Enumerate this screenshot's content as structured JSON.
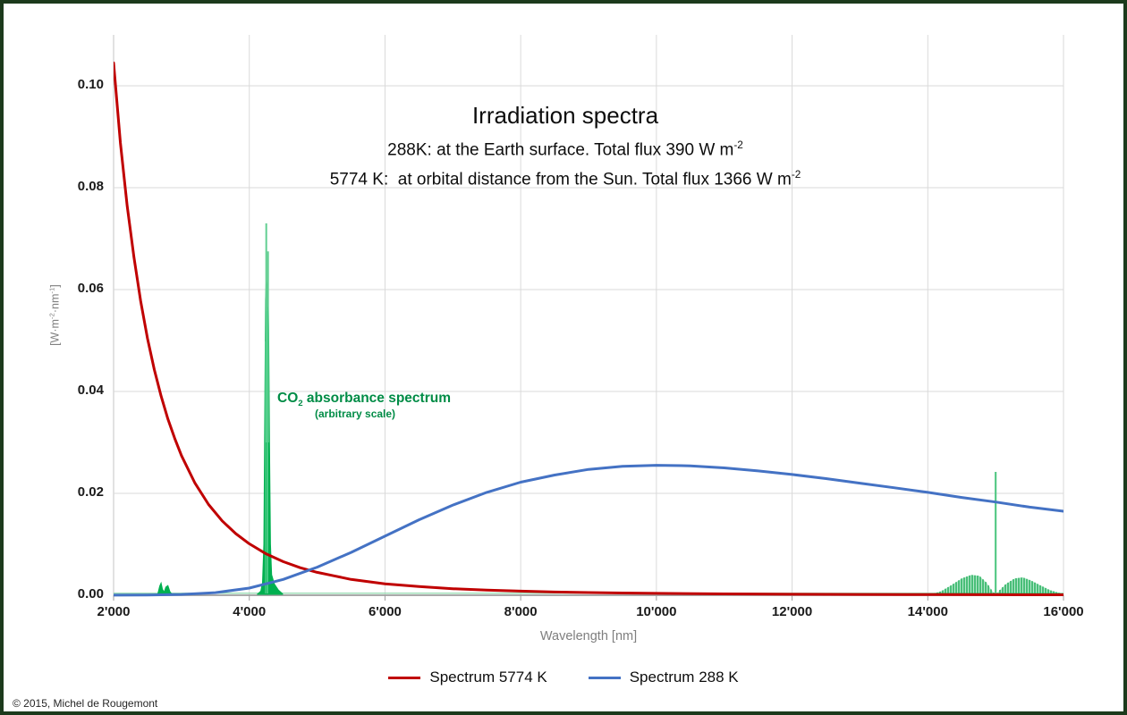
{
  "header": {
    "title": "Irradiation spectra",
    "subtitle1_text": "288K: at the Earth surface. Total flux 390 W m",
    "subtitle1_sup": "-2",
    "subtitle2_text": "5774 K:  at orbital distance from the Sun. Total flux 1366 W m",
    "subtitle2_sup": "-2"
  },
  "axes": {
    "x_label": "Wavelength [nm]",
    "y_label_p1": "[W·m",
    "y_label_s1": "-2",
    "y_label_p2": "·nm",
    "y_label_s2": "-1",
    "y_label_p3": "]"
  },
  "annotation": {
    "co2_pre": "CO",
    "co2_sub": "2",
    "co2_post": " absorbance spectrum",
    "co2_note": "(arbitrary scale)"
  },
  "legend": {
    "items": [
      {
        "label": "Spectrum 5774 K",
        "color": "#C00000"
      },
      {
        "label": "Spectrum 288 K",
        "color": "#4472C4"
      }
    ]
  },
  "footer": {
    "copyright": "© 2015, Michel de Rougemont"
  },
  "colors": {
    "red_curve": "#C00000",
    "blue_curve": "#4472C4",
    "green_solid": "#00B050",
    "green_comb": "#2fb563",
    "green_light": "#62cf92",
    "green_baseline": "#8fd8ab",
    "gridline": "#dadada",
    "axis": "#9e9e9e",
    "frame_border": "#1c3a1c",
    "annotation_green": "#008c46"
  },
  "chart_data": {
    "type": "line",
    "title": "Irradiation spectra",
    "subtitle1": "288K: at the Earth surface. Total flux 390 W m-2",
    "subtitle2": "5774 K: at orbital distance from the Sun. Total flux 1366 W m-2",
    "xlabel": "Wavelength [nm]",
    "ylabel": "[W·m-2·nm-1]",
    "xlim": [
      2000,
      16000
    ],
    "ylim": [
      0,
      0.11
    ],
    "grid": true,
    "legend_position": "bottom",
    "x_ticks": {
      "values": [
        2000,
        4000,
        6000,
        8000,
        10000,
        12000,
        14000,
        16000
      ],
      "labels": [
        "2'000",
        "4'000",
        "6'000",
        "8'000",
        "10'000",
        "12'000",
        "14'000",
        "16'000"
      ]
    },
    "y_ticks": {
      "values": [
        0,
        0.02,
        0.04,
        0.06,
        0.08,
        0.1
      ],
      "labels": [
        "0.00",
        "0.02",
        "0.04",
        "0.06",
        "0.08",
        "0.10"
      ]
    },
    "series": [
      {
        "name": "Spectrum 5774 K",
        "color": "#C00000",
        "points": [
          [
            2000,
            0.1045
          ],
          [
            2100,
            0.0888
          ],
          [
            2200,
            0.0764
          ],
          [
            2300,
            0.0663
          ],
          [
            2400,
            0.0577
          ],
          [
            2500,
            0.0504
          ],
          [
            2600,
            0.0443
          ],
          [
            2700,
            0.0391
          ],
          [
            2800,
            0.0346
          ],
          [
            2900,
            0.0308
          ],
          [
            3000,
            0.0274
          ],
          [
            3200,
            0.022
          ],
          [
            3400,
            0.0178
          ],
          [
            3600,
            0.0146
          ],
          [
            3800,
            0.0121
          ],
          [
            4000,
            0.0101
          ],
          [
            4250,
            0.0081
          ],
          [
            4500,
            0.0066
          ],
          [
            4750,
            0.0054
          ],
          [
            5000,
            0.0045
          ],
          [
            5250,
            0.0038
          ],
          [
            5500,
            0.0031
          ],
          [
            6000,
            0.00225
          ],
          [
            6500,
            0.0017
          ],
          [
            7000,
            0.00128
          ],
          [
            7500,
            0.001
          ],
          [
            8000,
            0.0008
          ],
          [
            8500,
            0.00064
          ],
          [
            9000,
            0.00052
          ],
          [
            9500,
            0.00043
          ],
          [
            10000,
            0.00036
          ],
          [
            11000,
            0.00026
          ],
          [
            12000,
            0.0002
          ],
          [
            13000,
            0.00015
          ],
          [
            14000,
            0.00012
          ],
          [
            15000,
            0.0001
          ],
          [
            16000,
            8e-05
          ]
        ]
      },
      {
        "name": "Spectrum 288 K",
        "color": "#4472C4",
        "points": [
          [
            2000,
            2e-05
          ],
          [
            2500,
            6e-05
          ],
          [
            3000,
            0.00015
          ],
          [
            3500,
            0.0005
          ],
          [
            4000,
            0.0014
          ],
          [
            4500,
            0.0031
          ],
          [
            5000,
            0.0055
          ],
          [
            5500,
            0.0084
          ],
          [
            6000,
            0.0116
          ],
          [
            6500,
            0.0148
          ],
          [
            7000,
            0.0177
          ],
          [
            7500,
            0.0202
          ],
          [
            8000,
            0.0222
          ],
          [
            8500,
            0.0236
          ],
          [
            9000,
            0.0247
          ],
          [
            9500,
            0.0253
          ],
          [
            10000,
            0.0255
          ],
          [
            10500,
            0.0254
          ],
          [
            11000,
            0.025
          ],
          [
            11500,
            0.0244
          ],
          [
            12000,
            0.0237
          ],
          [
            12500,
            0.0229
          ],
          [
            13000,
            0.022
          ],
          [
            13500,
            0.0211
          ],
          [
            14000,
            0.0202
          ],
          [
            14500,
            0.0192
          ],
          [
            15000,
            0.0183
          ],
          [
            15500,
            0.0173
          ],
          [
            16000,
            0.0165
          ]
        ]
      },
      {
        "name": "CO2 absorbance spectrum (arbitrary scale)",
        "color": "#00B050",
        "style": "band",
        "baseline": 0.0004,
        "bands": [
          {
            "id": "band-2.7um",
            "comb": false,
            "envelope": [
              [
                2650,
                0.0002
              ],
              [
                2680,
                0.0018
              ],
              [
                2700,
                0.0024
              ],
              [
                2720,
                0.0012
              ],
              [
                2745,
                0.0006
              ],
              [
                2770,
                0.0016
              ],
              [
                2800,
                0.0019
              ],
              [
                2830,
                0.0007
              ],
              [
                2860,
                0.0002
              ]
            ]
          },
          {
            "id": "band-4.3um",
            "comb": false,
            "envelope": [
              [
                4120,
                0.0002
              ],
              [
                4170,
                0.0008
              ],
              [
                4195,
                0.0025
              ],
              [
                4215,
                0.01
              ],
              [
                4228,
                0.035
              ],
              [
                4240,
                0.058
              ],
              [
                4252,
                0.063
              ],
              [
                4262,
                0.059
              ],
              [
                4274,
                0.062
              ],
              [
                4286,
                0.052
              ],
              [
                4298,
                0.03
              ],
              [
                4312,
                0.01
              ],
              [
                4330,
                0.004
              ],
              [
                4370,
                0.0022
              ],
              [
                4430,
                0.001
              ],
              [
                4490,
                0.0003
              ]
            ],
            "spikes": [
              [
                4250,
                0.073
              ],
              [
                4276,
                0.0675
              ]
            ]
          },
          {
            "id": "band-15um-left-lobe",
            "comb": true,
            "envelope": [
              [
                14060,
                0.0002
              ],
              [
                14200,
                0.0008
              ],
              [
                14350,
                0.002
              ],
              [
                14500,
                0.0033
              ],
              [
                14640,
                0.004
              ],
              [
                14760,
                0.0038
              ],
              [
                14870,
                0.0024
              ],
              [
                14940,
                0.001
              ],
              [
                14985,
                0.0003
              ]
            ]
          },
          {
            "id": "band-15um-spike",
            "spike": [
              15000,
              0.0242
            ]
          },
          {
            "id": "band-15um-right-lobe",
            "comb": true,
            "envelope": [
              [
                15015,
                0.0003
              ],
              [
                15060,
                0.001
              ],
              [
                15150,
                0.0022
              ],
              [
                15280,
                0.0033
              ],
              [
                15400,
                0.0035
              ],
              [
                15520,
                0.0029
              ],
              [
                15650,
                0.002
              ],
              [
                15800,
                0.001
              ],
              [
                15950,
                0.0004
              ],
              [
                16000,
                0.0003
              ]
            ]
          }
        ]
      }
    ]
  }
}
